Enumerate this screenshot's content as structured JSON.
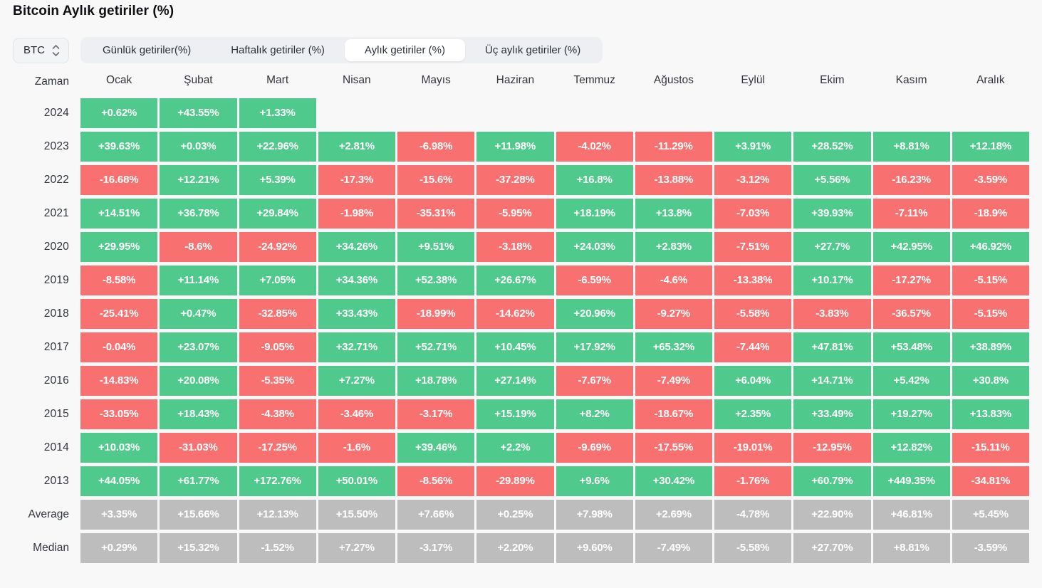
{
  "title": "Bitcoin Aylık getiriler (%)",
  "controls": {
    "asset_select": {
      "value": "BTC"
    },
    "tabs": [
      {
        "label": "Günlük getiriler(%)",
        "active": false
      },
      {
        "label": "Haftalık getiriler (%)",
        "active": false
      },
      {
        "label": "Aylık getiriler (%)",
        "active": true
      },
      {
        "label": "Üç aylık getiriler (%)",
        "active": false
      }
    ]
  },
  "colors": {
    "positive": "#4fc98c",
    "negative": "#f87170",
    "summary": "#bdbdbd",
    "page_bg": "#f8f8f9",
    "tab_bg": "#edeff2",
    "active_tab_bg": "#ffffff"
  },
  "chart_data": {
    "type": "heatmap",
    "title": "Bitcoin Aylık getiriler (%)",
    "columns": [
      "Zaman",
      "Ocak",
      "Şubat",
      "Mart",
      "Nisan",
      "Mayıs",
      "Haziran",
      "Temmuz",
      "Ağustos",
      "Eylül",
      "Ekim",
      "Kasım",
      "Aralık"
    ],
    "rows": [
      {
        "label": "2024",
        "type": "year",
        "values": [
          "+0.62%",
          "+43.55%",
          "+1.33%",
          "",
          "",
          "",
          "",
          "",
          "",
          "",
          "",
          ""
        ]
      },
      {
        "label": "2023",
        "type": "year",
        "values": [
          "+39.63%",
          "+0.03%",
          "+22.96%",
          "+2.81%",
          "-6.98%",
          "+11.98%",
          "-4.02%",
          "-11.29%",
          "+3.91%",
          "+28.52%",
          "+8.81%",
          "+12.18%"
        ]
      },
      {
        "label": "2022",
        "type": "year",
        "values": [
          "-16.68%",
          "+12.21%",
          "+5.39%",
          "-17.3%",
          "-15.6%",
          "-37.28%",
          "+16.8%",
          "-13.88%",
          "-3.12%",
          "+5.56%",
          "-16.23%",
          "-3.59%"
        ]
      },
      {
        "label": "2021",
        "type": "year",
        "values": [
          "+14.51%",
          "+36.78%",
          "+29.84%",
          "-1.98%",
          "-35.31%",
          "-5.95%",
          "+18.19%",
          "+13.8%",
          "-7.03%",
          "+39.93%",
          "-7.11%",
          "-18.9%"
        ]
      },
      {
        "label": "2020",
        "type": "year",
        "values": [
          "+29.95%",
          "-8.6%",
          "-24.92%",
          "+34.26%",
          "+9.51%",
          "-3.18%",
          "+24.03%",
          "+2.83%",
          "-7.51%",
          "+27.7%",
          "+42.95%",
          "+46.92%"
        ]
      },
      {
        "label": "2019",
        "type": "year",
        "values": [
          "-8.58%",
          "+11.14%",
          "+7.05%",
          "+34.36%",
          "+52.38%",
          "+26.67%",
          "-6.59%",
          "-4.6%",
          "-13.38%",
          "+10.17%",
          "-17.27%",
          "-5.15%"
        ]
      },
      {
        "label": "2018",
        "type": "year",
        "values": [
          "-25.41%",
          "+0.47%",
          "-32.85%",
          "+33.43%",
          "-18.99%",
          "-14.62%",
          "+20.96%",
          "-9.27%",
          "-5.58%",
          "-3.83%",
          "-36.57%",
          "-5.15%"
        ]
      },
      {
        "label": "2017",
        "type": "year",
        "values": [
          "-0.04%",
          "+23.07%",
          "-9.05%",
          "+32.71%",
          "+52.71%",
          "+10.45%",
          "+17.92%",
          "+65.32%",
          "-7.44%",
          "+47.81%",
          "+53.48%",
          "+38.89%"
        ]
      },
      {
        "label": "2016",
        "type": "year",
        "values": [
          "-14.83%",
          "+20.08%",
          "-5.35%",
          "+7.27%",
          "+18.78%",
          "+27.14%",
          "-7.67%",
          "-7.49%",
          "+6.04%",
          "+14.71%",
          "+5.42%",
          "+30.8%"
        ]
      },
      {
        "label": "2015",
        "type": "year",
        "values": [
          "-33.05%",
          "+18.43%",
          "-4.38%",
          "-3.46%",
          "-3.17%",
          "+15.19%",
          "+8.2%",
          "-18.67%",
          "+2.35%",
          "+33.49%",
          "+19.27%",
          "+13.83%"
        ]
      },
      {
        "label": "2014",
        "type": "year",
        "values": [
          "+10.03%",
          "-31.03%",
          "-17.25%",
          "-1.6%",
          "+39.46%",
          "+2.2%",
          "-9.69%",
          "-17.55%",
          "-19.01%",
          "-12.95%",
          "+12.82%",
          "-15.11%"
        ]
      },
      {
        "label": "2013",
        "type": "year",
        "values": [
          "+44.05%",
          "+61.77%",
          "+172.76%",
          "+50.01%",
          "-8.56%",
          "-29.89%",
          "+9.6%",
          "+30.42%",
          "-1.76%",
          "+60.79%",
          "+449.35%",
          "-34.81%"
        ]
      },
      {
        "label": "Average",
        "type": "summary",
        "values": [
          "+3.35%",
          "+15.66%",
          "+12.13%",
          "+15.50%",
          "+7.66%",
          "+0.25%",
          "+7.98%",
          "+2.69%",
          "-4.78%",
          "+22.90%",
          "+46.81%",
          "+5.45%"
        ]
      },
      {
        "label": "Median",
        "type": "summary",
        "values": [
          "+0.29%",
          "+15.32%",
          "-1.52%",
          "+7.27%",
          "-3.17%",
          "+2.20%",
          "+9.60%",
          "-7.49%",
          "-5.58%",
          "+27.70%",
          "+8.81%",
          "-3.59%"
        ]
      }
    ]
  }
}
